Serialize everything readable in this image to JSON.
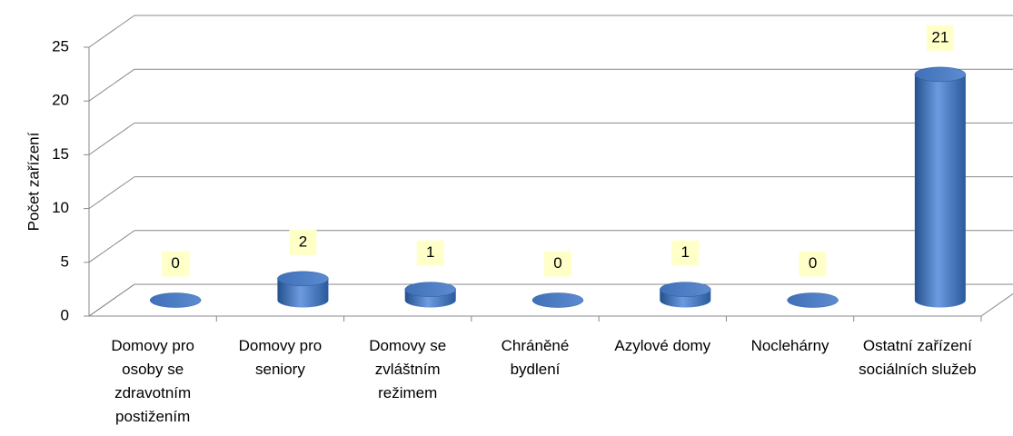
{
  "chart_data": {
    "type": "bar",
    "y_label": "Počet zařízení",
    "categories": [
      "Domovy pro osoby se zdravotním postižením",
      "Domovy pro seniory",
      "Domovy se zvláštním režimem",
      "Chráněné bydlení",
      "Azylové domy",
      "Noclehárny",
      "Ostatní zařízení sociálních služeb"
    ],
    "values": [
      0,
      2,
      1,
      0,
      1,
      0,
      21
    ],
    "color": "#3d6fb5",
    "ylim": [
      0,
      25
    ],
    "yticks": [
      0,
      5,
      10,
      15,
      20,
      25
    ],
    "grid": true
  }
}
